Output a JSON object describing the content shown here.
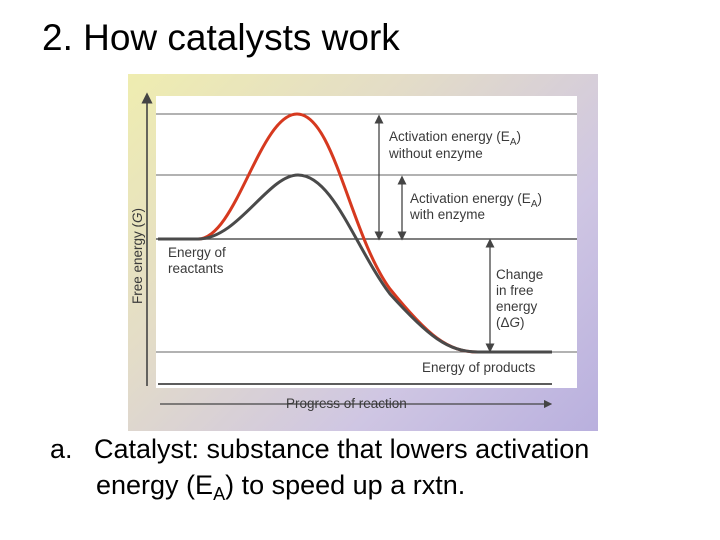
{
  "slide": {
    "title": "2. How catalysts work"
  },
  "diagram": {
    "y_axis_label_prefix": "Free energy (",
    "y_axis_symbol": "G",
    "y_axis_label_suffix": ")",
    "x_axis_label": "Progress of reaction",
    "ea_without": {
      "line1": "Activation energy (E",
      "sub": "A",
      "close": ")",
      "line2": "without enzyme"
    },
    "ea_with": {
      "line1": "Activation energy (E",
      "sub": "A",
      "close": ")",
      "line2": "with enzyme"
    },
    "reactants": {
      "line1": "Energy of",
      "line2": "reactants"
    },
    "delta_g": {
      "line1": "Change",
      "line2": "in free",
      "line3": "energy",
      "line4_prefix": "(Δ",
      "line4_symbol": "G",
      "line4_suffix": ")"
    },
    "products": "Energy of products",
    "colors": {
      "uncatalyzed": "#d6391f",
      "catalyzed": "#4a4a4a",
      "guides": "#555555"
    }
  },
  "bullet": {
    "marker": "a.",
    "text_line1": "Catalyst: substance that lowers activation",
    "text_line2_prefix": "energy (E",
    "text_line2_sub": "A",
    "text_line2_suffix": ") to speed up a rxtn."
  }
}
